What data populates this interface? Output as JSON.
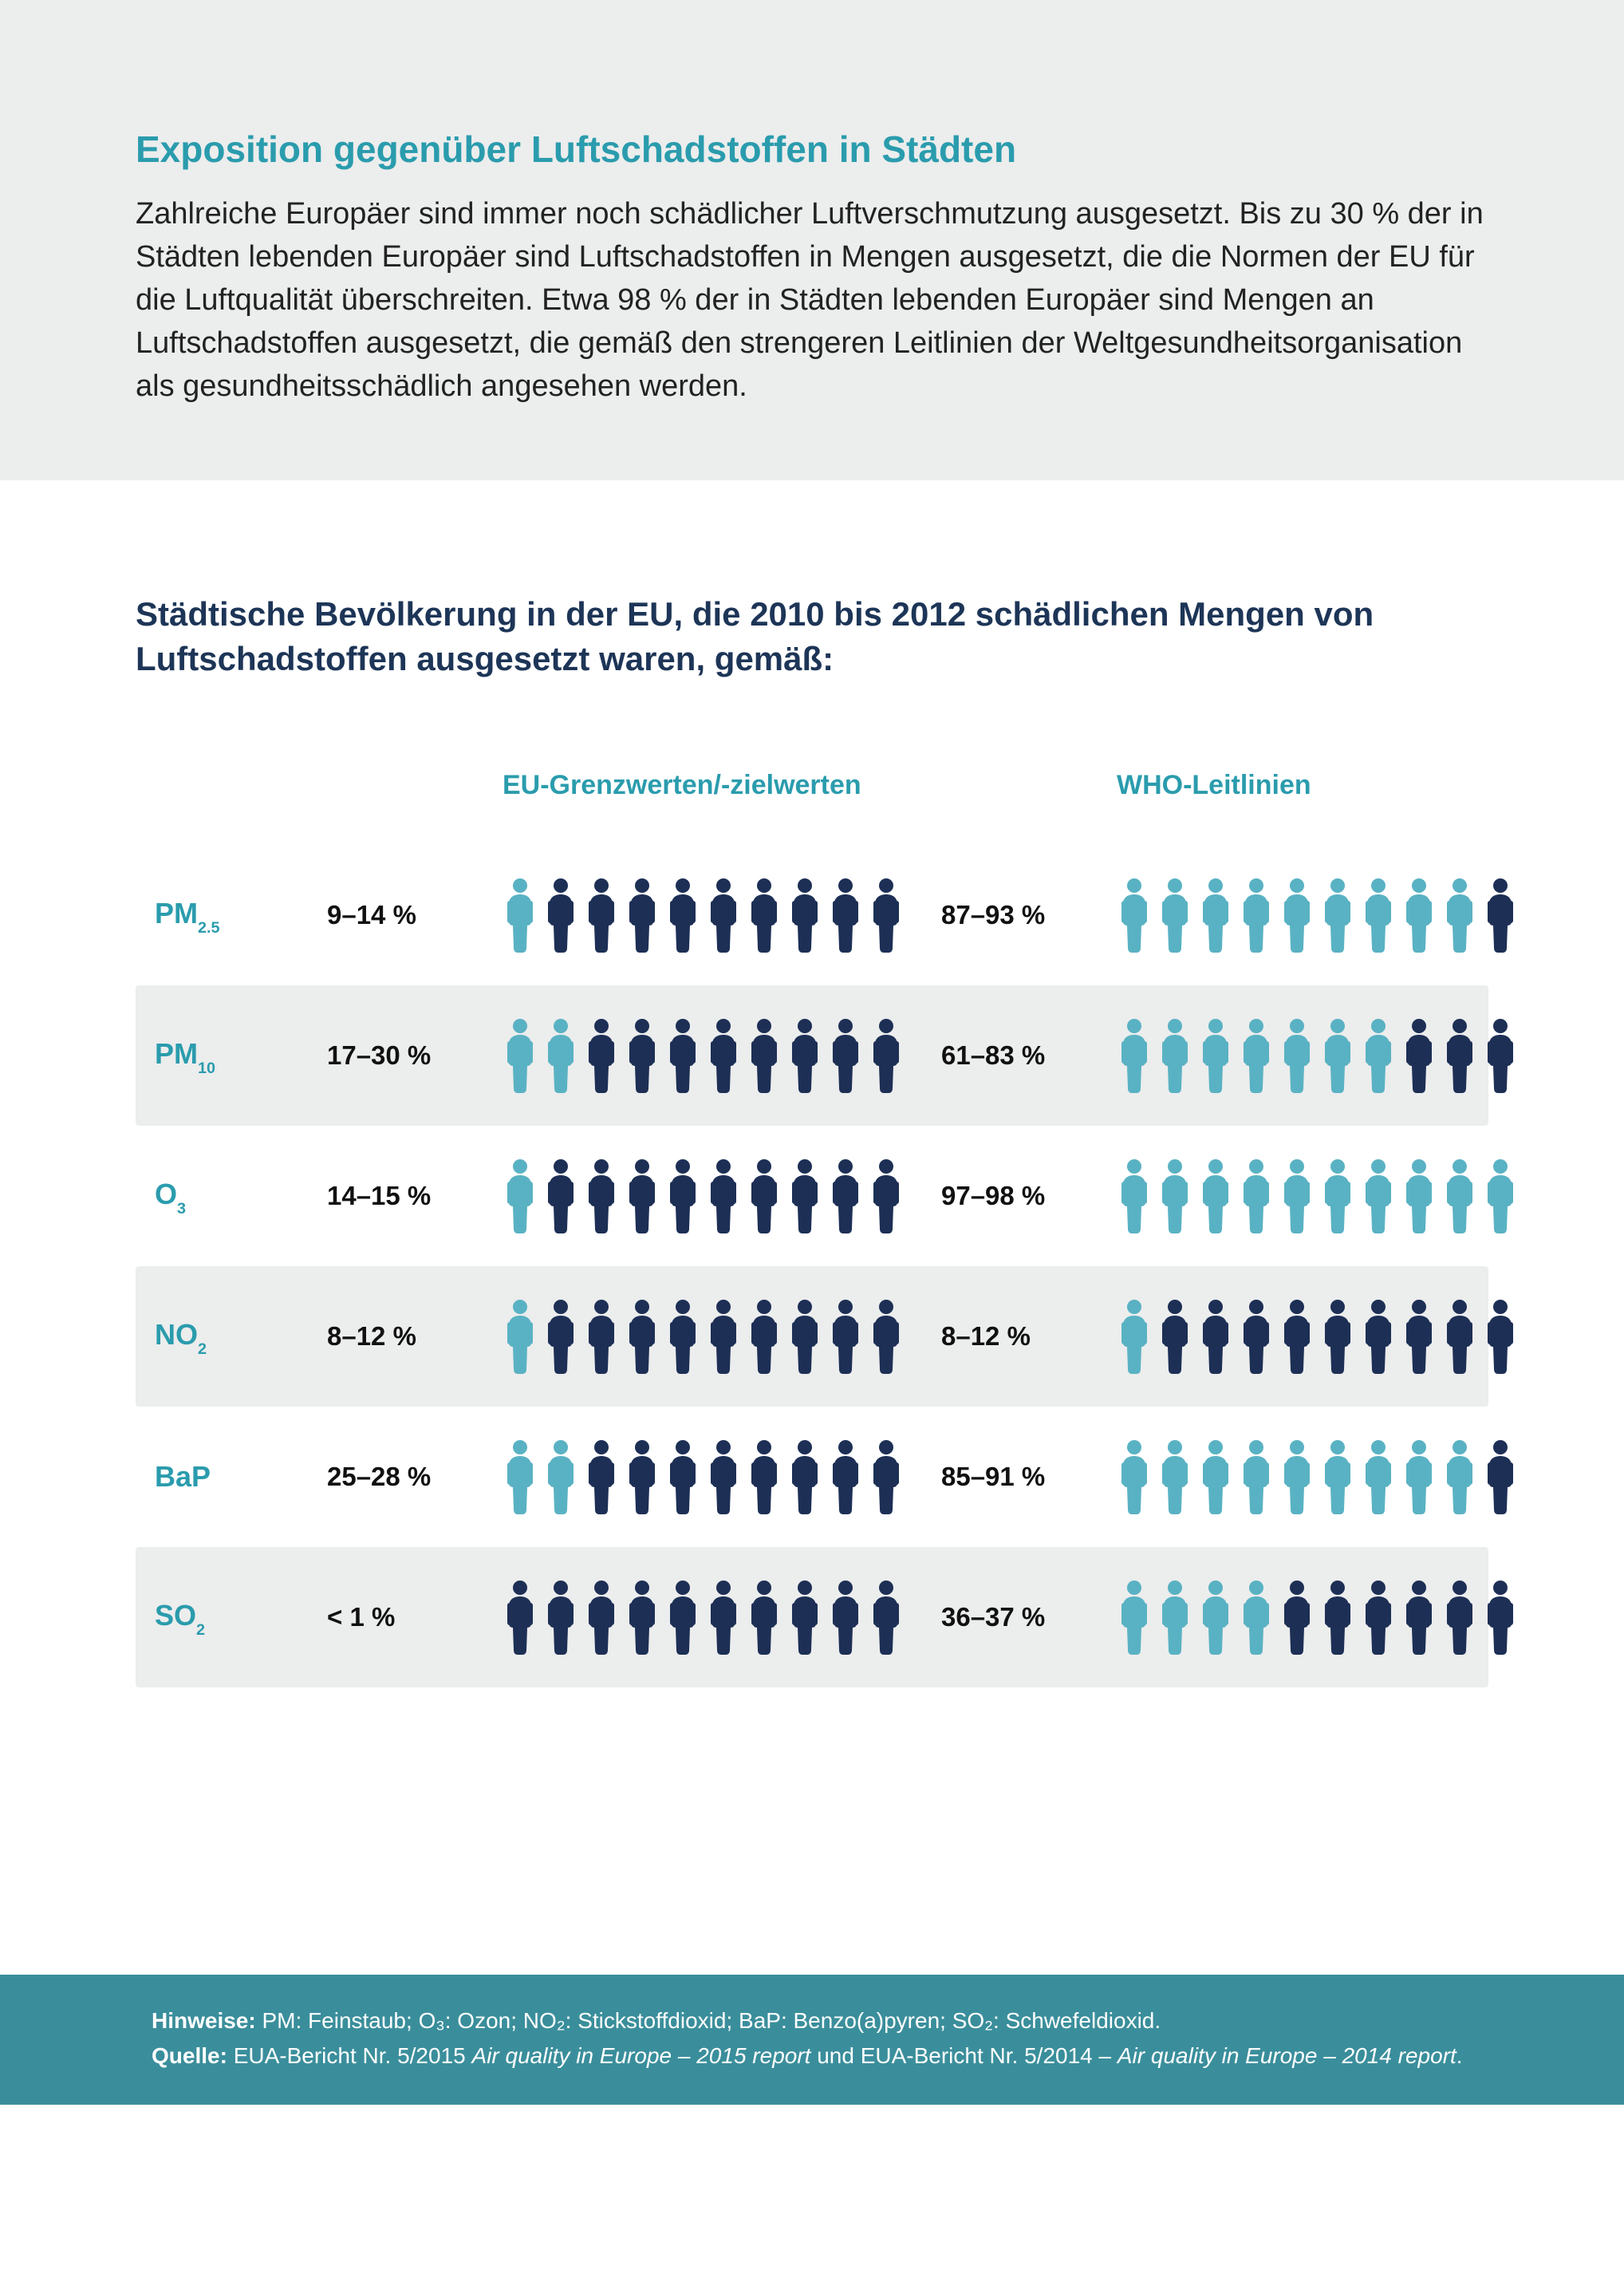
{
  "colors": {
    "page_bg": "#ffffff",
    "header_bg": "#eceded",
    "shade_row_bg": "#eceded",
    "title": "#2a9cad",
    "subhead": "#1d3557",
    "text": "#222222",
    "icon_light": "#59b2c3",
    "icon_dark": "#1d2f55",
    "footer_bg": "#3a8e9b",
    "footer_text": "#ffffff"
  },
  "header": {
    "title": "Exposition gegenüber Luftschadstoffen in Städten",
    "intro": "Zahlreiche Europäer sind immer noch schädlicher Luftverschmutzung ausgesetzt. Bis zu 30 % der in Städten lebenden Europäer sind Luftschadstoffen in Mengen ausgesetzt, die die Normen der EU für die Luftqualität überschreiten. Etwa 98 % der in Städten lebenden Europäer sind Mengen an Luftschadstoffen ausgesetzt, die gemäß den strengeren Leitlinien der Weltgesundheitsorganisation als gesundheitsschädlich angesehen werden."
  },
  "subheading": "Städtische Bevölkerung in der EU, die 2010 bis 2012 schädlichen Mengen von Luftschadstoffen ausgesetzt waren, gemäß:",
  "columns": {
    "eu": "EU-Grenzwerten/-zielwerten",
    "who": "WHO-Leitlinien"
  },
  "icon_total": 10,
  "rows": [
    {
      "pollutant": "PM",
      "sub": "2.5",
      "shaded": false,
      "eu_pct": "9–14 %",
      "eu_teal": 1,
      "who_pct": "87–93 %",
      "who_teal": 9
    },
    {
      "pollutant": "PM",
      "sub": "10",
      "shaded": true,
      "eu_pct": "17–30 %",
      "eu_teal": 2,
      "who_pct": "61–83 %",
      "who_teal": 7
    },
    {
      "pollutant": "O",
      "sub": "3",
      "shaded": false,
      "eu_pct": "14–15 %",
      "eu_teal": 1,
      "who_pct": "97–98 %",
      "who_teal": 10
    },
    {
      "pollutant": "NO",
      "sub": "2",
      "shaded": true,
      "eu_pct": "8–12 %",
      "eu_teal": 1,
      "who_pct": "8–12 %",
      "who_teal": 1
    },
    {
      "pollutant": "BaP",
      "sub": "",
      "shaded": false,
      "eu_pct": "25–28 %",
      "eu_teal": 2,
      "who_pct": "85–91 %",
      "who_teal": 9
    },
    {
      "pollutant": "SO",
      "sub": "2",
      "shaded": true,
      "eu_pct": "< 1 %",
      "eu_teal": 0,
      "who_pct": "36–37 %",
      "who_teal": 4
    }
  ],
  "footer": {
    "hinweise_label": "Hinweise:",
    "hinweise_text": "PM: Feinstaub; O₃: Ozon; NO₂: Stickstoffdioxid; BaP: Benzo(a)pyren; SO₂: Schwefeldioxid.",
    "quelle_label": "Quelle:",
    "quelle_prefix": "EUA-Bericht Nr. 5/2015 ",
    "quelle_em1": "Air quality in Europe – 2015 report",
    "quelle_mid": " und EUA-Bericht Nr. 5/2014 – ",
    "quelle_em2": "Air quality in Europe – 2014 report",
    "quelle_suffix": "."
  }
}
